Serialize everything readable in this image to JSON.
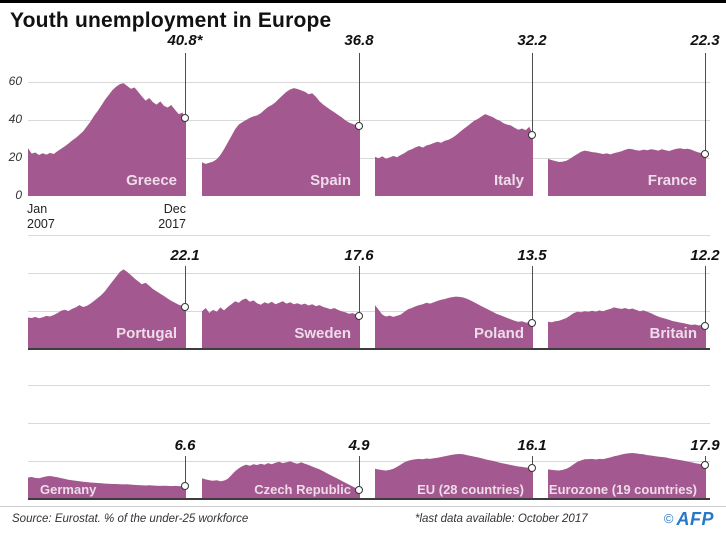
{
  "title": "Youth unemployment in Europe",
  "colors": {
    "area": "#a3598f",
    "country_label": "#eedcea",
    "grid": "#d9d9d9",
    "baseline": "#3d3d3d",
    "marker": "#4f4f4f",
    "afp_blue": "#2878c8"
  },
  "y_axis": {
    "ticks": [
      "60",
      "40",
      "20",
      "0"
    ],
    "values": [
      60,
      40,
      20,
      0
    ]
  },
  "x_axis": {
    "start": [
      "Jan",
      "2007"
    ],
    "end": [
      "Dec",
      "2017"
    ]
  },
  "footer": {
    "source": "Source: Eurostat. % of the under-25 workforce",
    "note": "*last data available: October 2017",
    "copyright": "©",
    "agency": "AFP"
  },
  "chart_data": {
    "type": "area",
    "title": "Youth unemployment in Europe",
    "unit": "% of the under-25 workforce",
    "x_start": "Jan 2007",
    "x_end": "Dec 2017",
    "ylim": [
      0,
      60
    ],
    "gridlines": [
      20,
      40,
      60
    ],
    "legend_position": "none",
    "charts": [
      {
        "name": "Greece",
        "final_label": "40.8*",
        "final_value": 40.8,
        "align": "right",
        "values": [
          25.2,
          22.3,
          22.9,
          21.6,
          22.5,
          21.8,
          22.7,
          22.1,
          23.6,
          24.9,
          26.1,
          27.6,
          29.2,
          30.6,
          32.2,
          34.0,
          36.6,
          39.2,
          42.2,
          44.8,
          47.8,
          50.8,
          53.2,
          55.8,
          57.6,
          58.9,
          59.4,
          57.9,
          56.4,
          57.1,
          54.8,
          52.4,
          50.2,
          51.6,
          49.4,
          48.1,
          49.8,
          47.4,
          46.6,
          47.9,
          45.4,
          43.1,
          43.9,
          40.8
        ]
      },
      {
        "name": "Spain",
        "final_label": "36.8",
        "final_value": 36.8,
        "align": "right",
        "values": [
          17.8,
          16.9,
          17.5,
          18.1,
          19.3,
          21.6,
          24.6,
          28.1,
          31.6,
          35.1,
          37.6,
          38.9,
          40.0,
          41.1,
          41.9,
          42.4,
          43.6,
          45.3,
          46.9,
          47.9,
          49.3,
          51.3,
          53.1,
          54.9,
          56.1,
          56.8,
          56.3,
          55.6,
          54.9,
          53.6,
          54.1,
          52.2,
          49.8,
          48.1,
          46.7,
          45.3,
          44.1,
          42.7,
          41.5,
          39.9,
          38.7,
          37.9,
          37.3,
          36.8
        ]
      },
      {
        "name": "Italy",
        "final_label": "32.2",
        "final_value": 32.2,
        "align": "right",
        "values": [
          20.6,
          19.9,
          20.9,
          19.6,
          20.3,
          21.1,
          20.4,
          21.6,
          22.6,
          23.9,
          24.6,
          25.6,
          26.3,
          25.5,
          26.6,
          27.1,
          27.9,
          28.6,
          28.0,
          29.1,
          29.6,
          30.6,
          31.9,
          33.6,
          35.1,
          36.6,
          38.1,
          39.6,
          40.6,
          41.9,
          43.1,
          42.3,
          41.6,
          40.4,
          39.6,
          38.3,
          37.6,
          37.1,
          35.9,
          34.9,
          35.5,
          34.7,
          36.4,
          32.2
        ]
      },
      {
        "name": "France",
        "final_label": "22.3",
        "final_value": 22.3,
        "align": "right",
        "values": [
          19.6,
          18.9,
          18.4,
          17.9,
          18.1,
          18.6,
          19.6,
          20.9,
          22.1,
          23.3,
          23.9,
          23.6,
          23.1,
          22.9,
          22.5,
          22.1,
          22.4,
          21.9,
          22.6,
          23.0,
          23.6,
          24.3,
          24.9,
          24.6,
          24.1,
          23.9,
          24.4,
          24.1,
          24.6,
          24.3,
          23.9,
          24.6,
          24.1,
          23.7,
          24.3,
          24.9,
          25.1,
          24.7,
          24.9,
          24.4,
          23.6,
          22.9,
          22.6,
          22.3
        ]
      },
      {
        "name": "Portugal",
        "final_label": "22.1",
        "final_value": 22.1,
        "align": "right",
        "values": [
          16.6,
          16.3,
          16.9,
          16.2,
          16.7,
          17.4,
          17.1,
          17.9,
          18.9,
          20.1,
          20.7,
          20.0,
          21.1,
          21.9,
          23.1,
          22.1,
          22.7,
          23.9,
          25.3,
          26.9,
          28.5,
          30.6,
          33.1,
          35.6,
          38.1,
          40.6,
          41.9,
          40.6,
          38.9,
          37.1,
          35.6,
          34.1,
          34.9,
          33.3,
          31.6,
          30.3,
          29.1,
          27.9,
          26.6,
          25.3,
          24.3,
          23.3,
          22.7,
          22.1
        ]
      },
      {
        "name": "Sweden",
        "final_label": "17.6",
        "final_value": 17.6,
        "align": "right",
        "values": [
          19.9,
          21.6,
          19.0,
          20.6,
          19.6,
          21.9,
          20.3,
          22.1,
          23.6,
          25.1,
          24.3,
          25.9,
          26.6,
          24.9,
          25.6,
          24.1,
          23.3,
          24.6,
          23.9,
          24.9,
          23.6,
          24.3,
          25.1,
          23.9,
          24.6,
          23.6,
          24.1,
          23.3,
          23.9,
          22.9,
          23.6,
          22.6,
          23.1,
          22.1,
          21.6,
          20.9,
          21.6,
          20.6,
          19.9,
          19.3,
          18.6,
          18.9,
          18.1,
          17.6
        ]
      },
      {
        "name": "Poland",
        "final_label": "13.5",
        "final_value": 13.5,
        "align": "right",
        "values": [
          23.1,
          20.6,
          18.1,
          17.1,
          17.6,
          16.9,
          17.5,
          18.1,
          19.6,
          20.9,
          21.6,
          22.4,
          23.1,
          23.6,
          24.3,
          23.9,
          24.6,
          25.3,
          25.9,
          26.3,
          26.9,
          27.3,
          27.6,
          27.4,
          27.1,
          26.5,
          25.6,
          24.6,
          23.6,
          22.5,
          21.6,
          20.6,
          19.6,
          18.6,
          17.9,
          17.1,
          16.3,
          15.6,
          14.9,
          14.3,
          14.6,
          13.9,
          14.1,
          13.5
        ]
      },
      {
        "name": "Britain",
        "final_label": "12.2",
        "final_value": 12.2,
        "align": "right",
        "values": [
          14.3,
          14.1,
          14.6,
          14.9,
          15.6,
          16.3,
          17.6,
          18.9,
          19.6,
          19.3,
          19.9,
          19.6,
          20.1,
          19.7,
          20.3,
          19.9,
          20.6,
          21.1,
          21.9,
          21.5,
          21.1,
          21.6,
          20.9,
          21.3,
          20.6,
          19.9,
          20.3,
          19.6,
          18.9,
          17.9,
          17.1,
          16.5,
          15.9,
          15.3,
          14.7,
          14.3,
          13.9,
          13.5,
          13.1,
          12.7,
          12.9,
          12.4,
          12.6,
          12.2
        ]
      },
      {
        "name": "Germany",
        "final_label": "6.6",
        "final_value": 6.6,
        "align": "left",
        "values": [
          11.3,
          11.6,
          11.1,
          10.9,
          11.4,
          11.9,
          12.1,
          11.8,
          11.4,
          11.0,
          10.6,
          10.1,
          9.9,
          9.6,
          9.3,
          9.1,
          8.9,
          8.7,
          8.6,
          8.4,
          8.3,
          8.1,
          8.0,
          7.9,
          7.9,
          7.8,
          7.7,
          7.8,
          7.6,
          7.4,
          7.3,
          7.2,
          7.1,
          7.2,
          7.1,
          7.0,
          6.9,
          7.0,
          6.9,
          6.8,
          6.9,
          6.8,
          6.7,
          6.6
        ]
      },
      {
        "name": "Czech Republic",
        "final_label": "4.9",
        "final_value": 4.9,
        "align": "right",
        "values": [
          10.9,
          10.3,
          9.9,
          9.6,
          9.9,
          9.3,
          9.7,
          10.6,
          12.6,
          14.6,
          16.1,
          17.3,
          18.1,
          17.5,
          18.3,
          17.9,
          18.6,
          18.0,
          18.9,
          18.3,
          19.1,
          19.6,
          18.9,
          19.3,
          19.9,
          19.1,
          18.6,
          19.3,
          18.5,
          17.9,
          17.1,
          16.3,
          15.6,
          14.6,
          13.6,
          12.6,
          11.6,
          10.6,
          9.6,
          8.6,
          7.6,
          6.6,
          5.6,
          4.9
        ]
      },
      {
        "name": "EU (28 countries)",
        "final_label": "16.1",
        "final_value": 16.1,
        "align": "right",
        "values": [
          15.9,
          15.5,
          15.2,
          15.0,
          15.3,
          15.9,
          16.9,
          18.1,
          19.3,
          20.1,
          20.6,
          20.9,
          21.1,
          20.9,
          21.3,
          21.1,
          21.5,
          21.7,
          22.1,
          22.5,
          22.9,
          23.3,
          23.6,
          23.7,
          23.5,
          23.1,
          22.7,
          22.3,
          21.9,
          21.5,
          20.9,
          20.5,
          20.1,
          19.6,
          19.1,
          18.7,
          18.3,
          17.9,
          17.5,
          17.1,
          16.9,
          16.6,
          16.4,
          16.1
        ]
      },
      {
        "name": "Eurozone (19 countries)",
        "final_label": "17.9",
        "final_value": 17.9,
        "align": "right",
        "values": [
          15.6,
          15.3,
          15.1,
          15.0,
          15.3,
          15.9,
          16.9,
          18.3,
          19.6,
          20.3,
          20.9,
          21.0,
          21.1,
          20.8,
          21.1,
          21.0,
          21.4,
          21.9,
          22.5,
          22.9,
          23.4,
          23.8,
          24.1,
          24.2,
          24.0,
          23.7,
          23.5,
          23.1,
          22.9,
          22.6,
          22.3,
          22.1,
          21.9,
          21.5,
          21.1,
          20.8,
          20.5,
          20.1,
          19.7,
          19.3,
          18.9,
          18.5,
          18.2,
          17.9
        ]
      }
    ]
  }
}
